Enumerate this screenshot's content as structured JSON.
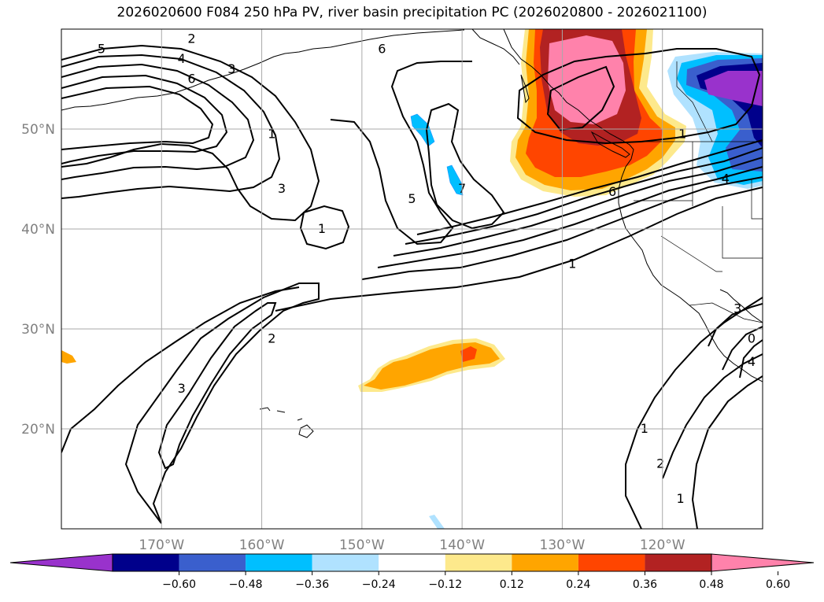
{
  "chart_data": {
    "type": "contour-map",
    "title": "2026020600 F084 250 hPa PV, river basin precipitation PC (2026020800 - 2026021100)",
    "lon_range": [
      -180,
      -110
    ],
    "lat_range": [
      10,
      60
    ],
    "x_ticks": [
      {
        "lon": -170,
        "label": "170°W"
      },
      {
        "lon": -160,
        "label": "160°W"
      },
      {
        "lon": -150,
        "label": "150°W"
      },
      {
        "lon": -140,
        "label": "140°W"
      },
      {
        "lon": -130,
        "label": "130°W"
      },
      {
        "lon": -120,
        "label": "120°W"
      }
    ],
    "y_ticks": [
      {
        "lat": 50,
        "label": "50°N"
      },
      {
        "lat": 40,
        "label": "40°N"
      },
      {
        "lat": 30,
        "label": "30°N"
      },
      {
        "lat": 20,
        "label": "20°N"
      }
    ],
    "grid": true,
    "colorbar": {
      "levels": [
        -0.6,
        -0.48,
        -0.36,
        -0.24,
        -0.12,
        0.12,
        0.24,
        0.36,
        0.48,
        0.6
      ],
      "tick_labels": [
        "−0.60",
        "−0.48",
        "−0.36",
        "−0.24",
        "−0.12",
        "0.12",
        "0.24",
        "0.36",
        "0.48",
        "0.60"
      ],
      "colors": [
        "#9932cc",
        "#00008b",
        "#3a5fcd",
        "#00bfff",
        "#b0e2ff",
        "#ffffff",
        "#fde98c",
        "#ffa500",
        "#ff4500",
        "#b22222",
        "#ff82ab"
      ],
      "extend": "both"
    },
    "contour_labels": [
      {
        "text": "5",
        "lon": -176,
        "lat": 58
      },
      {
        "text": "2",
        "lon": -167,
        "lat": 59
      },
      {
        "text": "4",
        "lon": -168,
        "lat": 57
      },
      {
        "text": "3",
        "lon": -163,
        "lat": 56
      },
      {
        "text": "6",
        "lon": -167,
        "lat": 55
      },
      {
        "text": "6",
        "lon": -148,
        "lat": 58
      },
      {
        "text": "1",
        "lon": -159,
        "lat": 49.5
      },
      {
        "text": "3",
        "lon": -158,
        "lat": 44
      },
      {
        "text": "1",
        "lon": -154,
        "lat": 40
      },
      {
        "text": "5",
        "lon": -145,
        "lat": 43
      },
      {
        "text": "7",
        "lon": -140,
        "lat": 44
      },
      {
        "text": "6",
        "lon": -125,
        "lat": 43.7
      },
      {
        "text": "1",
        "lon": -129,
        "lat": 36.5
      },
      {
        "text": "1",
        "lon": -118,
        "lat": 49.5
      },
      {
        "text": "4",
        "lon": -113.7,
        "lat": 45
      },
      {
        "text": "2",
        "lon": -159,
        "lat": 29
      },
      {
        "text": "3",
        "lon": -168,
        "lat": 24
      },
      {
        "text": "3",
        "lon": -112.5,
        "lat": 32
      },
      {
        "text": "0",
        "lon": -111.1,
        "lat": 29
      },
      {
        "text": "4",
        "lon": -111.1,
        "lat": 26.7
      },
      {
        "text": "1",
        "lon": -121.8,
        "lat": 20
      },
      {
        "text": "2",
        "lon": -120.2,
        "lat": 16.5
      },
      {
        "text": "1",
        "lon": -118.2,
        "lat": 13
      }
    ]
  }
}
